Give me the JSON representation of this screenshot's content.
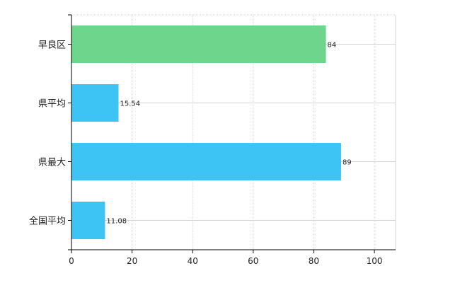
{
  "chart_data": {
    "type": "bar",
    "orientation": "horizontal",
    "categories": [
      "早良区",
      "県平均",
      "県最大",
      "全国平均"
    ],
    "values": [
      84,
      15.54,
      89,
      11.08
    ],
    "value_labels": [
      "84",
      "15.54",
      "89",
      "11.08"
    ],
    "bar_colors": [
      "#6dd58c",
      "#3dc3f4",
      "#3dc3f4",
      "#3dc3f4"
    ],
    "xlim": [
      0,
      107
    ],
    "xticks": [
      0,
      20,
      40,
      60,
      80,
      100
    ],
    "xtick_labels": [
      "0",
      "20",
      "40",
      "60",
      "80",
      "100"
    ],
    "grid": true,
    "title": "",
    "xlabel": "",
    "ylabel": ""
  }
}
